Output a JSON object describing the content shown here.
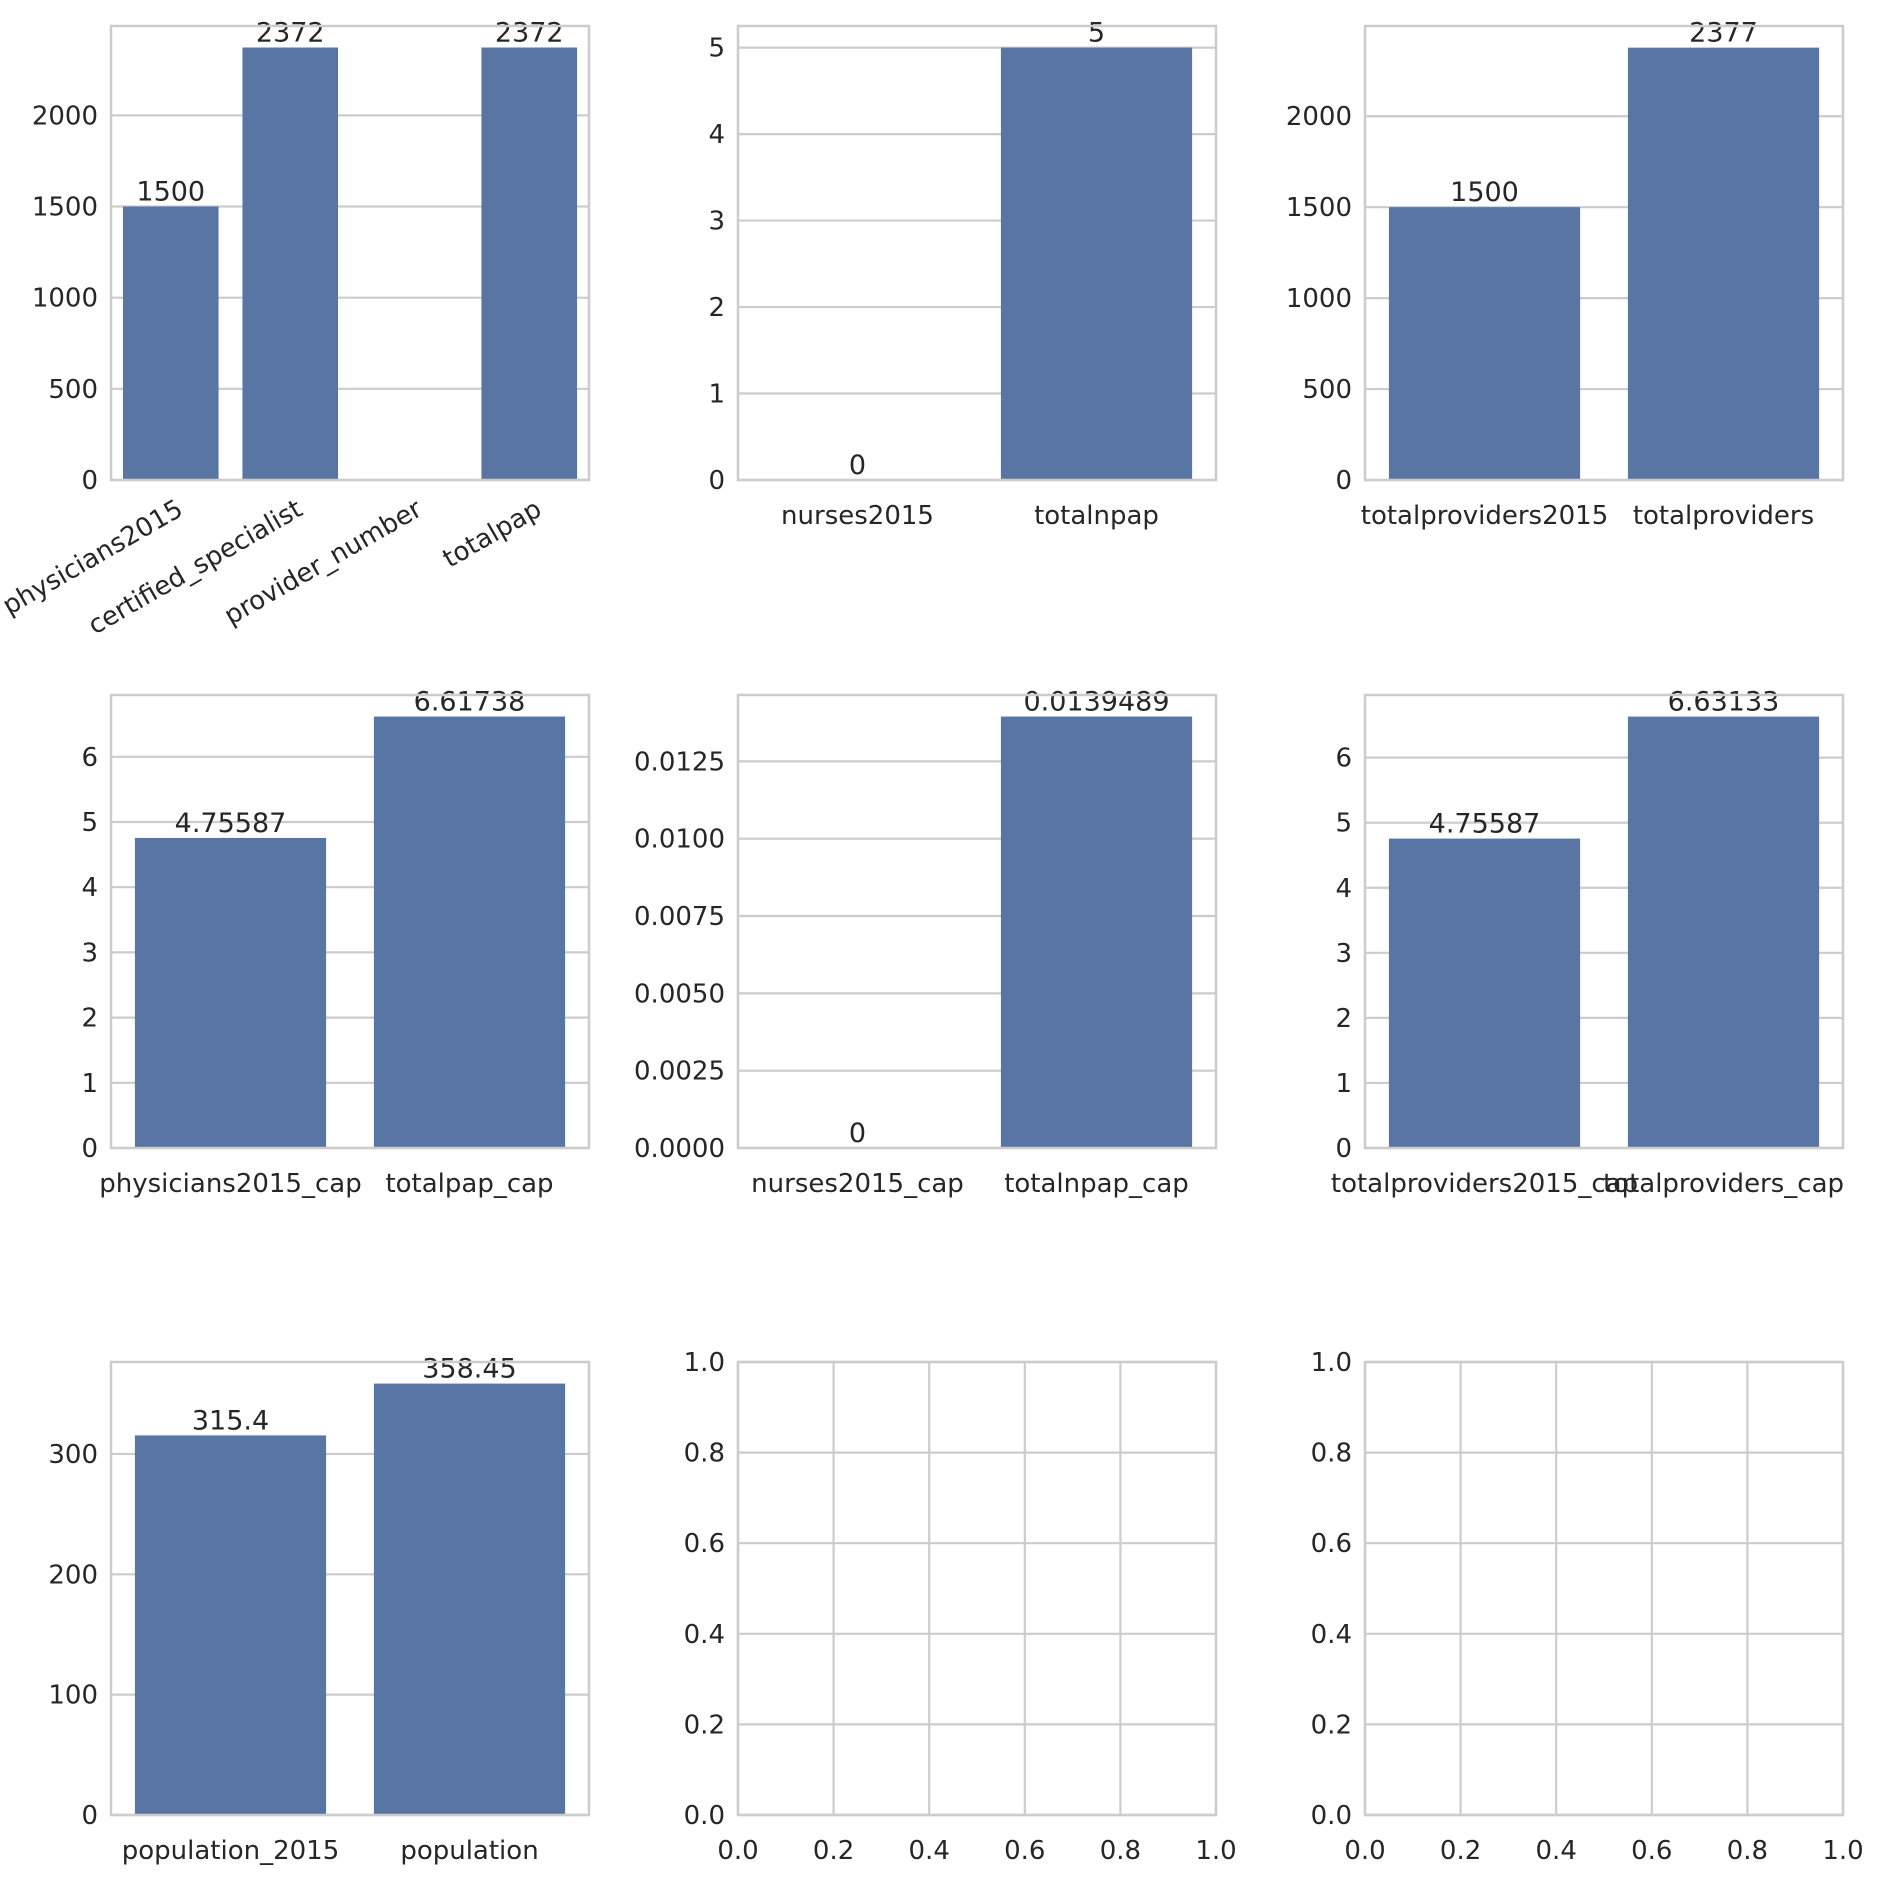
{
  "colors": {
    "bar": "#5875a4",
    "grid": "#cccccc",
    "frame": "#cccccc",
    "text": "#262626"
  },
  "chart_data": [
    {
      "type": "bar",
      "categories": [
        "physicians2015",
        "certified_specialist",
        "provider_number",
        "totalpap"
      ],
      "values": [
        1500,
        2372,
        null,
        2372
      ],
      "bar_labels": [
        "1500",
        "2372",
        "",
        "2372"
      ],
      "ylim": [
        0,
        2490
      ],
      "yticks": [
        0,
        500,
        1000,
        1500,
        2000
      ],
      "ytick_labels": [
        "0",
        "500",
        "1000",
        "1500",
        "2000"
      ],
      "x_tick_rotation": 30,
      "grid": "y"
    },
    {
      "type": "bar",
      "categories": [
        "nurses2015",
        "totalnpap"
      ],
      "values": [
        0,
        5
      ],
      "bar_labels": [
        "0",
        "5"
      ],
      "ylim": [
        0,
        5.25
      ],
      "yticks": [
        0,
        1,
        2,
        3,
        4,
        5
      ],
      "ytick_labels": [
        "0",
        "1",
        "2",
        "3",
        "4",
        "5"
      ],
      "grid": "y"
    },
    {
      "type": "bar",
      "categories": [
        "totalproviders2015",
        "totalproviders"
      ],
      "values": [
        1500,
        2377
      ],
      "bar_labels": [
        "1500",
        "2377"
      ],
      "ylim": [
        0,
        2496
      ],
      "yticks": [
        0,
        500,
        1000,
        1500,
        2000
      ],
      "ytick_labels": [
        "0",
        "500",
        "1000",
        "1500",
        "2000"
      ],
      "grid": "y"
    },
    {
      "type": "bar",
      "categories": [
        "physicians2015_cap",
        "totalpap_cap"
      ],
      "values": [
        4.75587,
        6.61738
      ],
      "bar_labels": [
        "4.75587",
        "6.61738"
      ],
      "ylim": [
        0,
        6.948
      ],
      "yticks": [
        0,
        1,
        2,
        3,
        4,
        5,
        6
      ],
      "ytick_labels": [
        "0",
        "1",
        "2",
        "3",
        "4",
        "5",
        "6"
      ],
      "grid": "y"
    },
    {
      "type": "bar",
      "categories": [
        "nurses2015_cap",
        "totalnpap_cap"
      ],
      "values": [
        0,
        0.0139489
      ],
      "bar_labels": [
        "0",
        "0.0139489"
      ],
      "ylim": [
        0,
        0.014646
      ],
      "yticks": [
        0,
        0.0025,
        0.005,
        0.0075,
        0.01,
        0.0125
      ],
      "ytick_labels": [
        "0.0000",
        "0.0025",
        "0.0050",
        "0.0075",
        "0.0100",
        "0.0125"
      ],
      "grid": "y"
    },
    {
      "type": "bar",
      "categories": [
        "totalproviders2015_cap",
        "totalproviders_cap"
      ],
      "values": [
        4.75587,
        6.63133
      ],
      "bar_labels": [
        "4.75587",
        "6.63133"
      ],
      "ylim": [
        0,
        6.963
      ],
      "yticks": [
        0,
        1,
        2,
        3,
        4,
        5,
        6
      ],
      "ytick_labels": [
        "0",
        "1",
        "2",
        "3",
        "4",
        "5",
        "6"
      ],
      "grid": "y"
    },
    {
      "type": "bar",
      "categories": [
        "population_2015",
        "population"
      ],
      "values": [
        315.4,
        358.45
      ],
      "bar_labels": [
        "315.4",
        "358.45"
      ],
      "ylim": [
        0,
        376.4
      ],
      "yticks": [
        0,
        100,
        200,
        300
      ],
      "ytick_labels": [
        "0",
        "100",
        "200",
        "300"
      ],
      "grid": "y"
    },
    {
      "type": "bar",
      "categories": [],
      "values": [],
      "xlim": [
        0,
        1
      ],
      "ylim": [
        0,
        1
      ],
      "xticks": [
        0,
        0.2,
        0.4,
        0.6,
        0.8,
        1.0
      ],
      "xtick_labels": [
        "0.0",
        "0.2",
        "0.4",
        "0.6",
        "0.8",
        "1.0"
      ],
      "yticks": [
        0,
        0.2,
        0.4,
        0.6,
        0.8,
        1.0
      ],
      "ytick_labels": [
        "0.0",
        "0.2",
        "0.4",
        "0.6",
        "0.8",
        "1.0"
      ],
      "grid": "both"
    },
    {
      "type": "bar",
      "categories": [],
      "values": [],
      "xlim": [
        0,
        1
      ],
      "ylim": [
        0,
        1
      ],
      "xticks": [
        0,
        0.2,
        0.4,
        0.6,
        0.8,
        1.0
      ],
      "xtick_labels": [
        "0.0",
        "0.2",
        "0.4",
        "0.6",
        "0.8",
        "1.0"
      ],
      "yticks": [
        0,
        0.2,
        0.4,
        0.6,
        0.8,
        1.0
      ],
      "ytick_labels": [
        "0.0",
        "0.2",
        "0.4",
        "0.6",
        "0.8",
        "1.0"
      ],
      "grid": "both"
    }
  ]
}
